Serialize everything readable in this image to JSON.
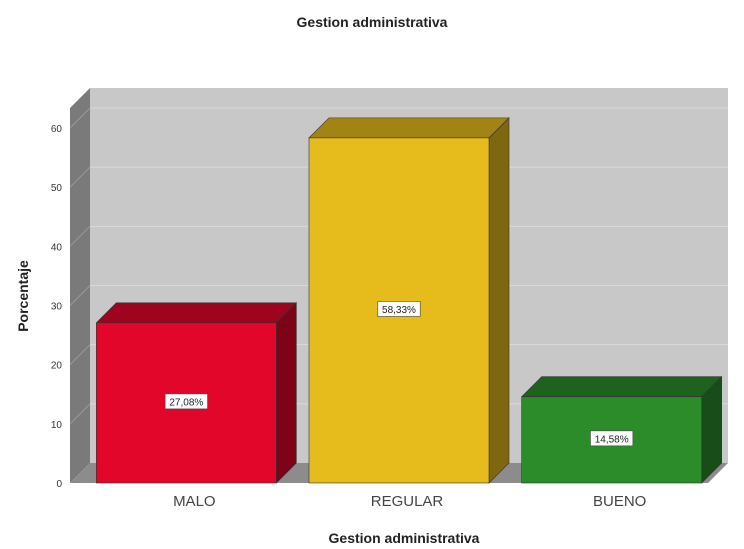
{
  "chart_data": {
    "type": "bar",
    "title": "Gestion administrativa",
    "xlabel": "Gestion administrativa",
    "ylabel": "Porcentaje",
    "ylim": [
      0,
      60
    ],
    "yticks": [
      0,
      10,
      20,
      30,
      40,
      50,
      60
    ],
    "grid": true,
    "categories": [
      "MALO",
      "REGULAR",
      "BUENO"
    ],
    "values": [
      27.08,
      58.33,
      14.58
    ],
    "data_labels": [
      "27,08%",
      "58,33%",
      "14,58%"
    ],
    "colors": [
      "#E2062B",
      "#E6BC1C",
      "#2C8C2A"
    ],
    "background_color": "#C8C8C8",
    "grid_color": "#DADADA"
  }
}
